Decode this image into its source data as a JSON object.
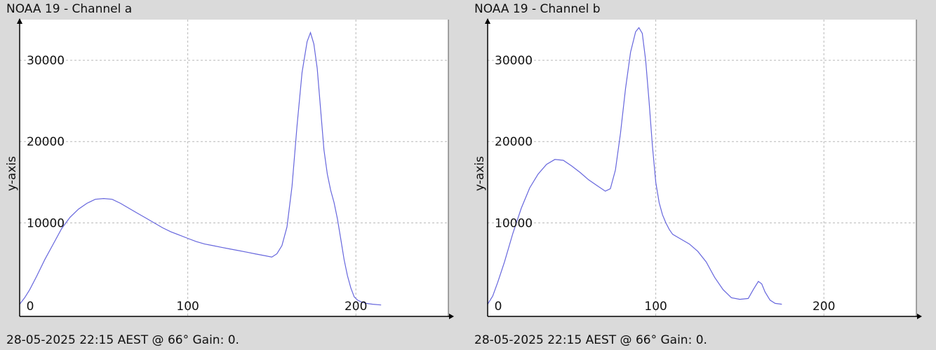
{
  "panels": [
    {
      "title": "NOAA 19 - Channel a",
      "footer": "28-05-2025 22:15 AEST @ 66° Gain: 0.",
      "ylabel": "y-axis"
    },
    {
      "title": "NOAA 19 - Channel b",
      "footer": "28-05-2025 22:15 AEST @ 66° Gain: 0.",
      "ylabel": "y-axis"
    }
  ],
  "chart_data": [
    {
      "type": "line",
      "title": "NOAA 19 - Channel a",
      "xlabel": "",
      "ylabel": "y-axis",
      "xlim": [
        0,
        255
      ],
      "ylim": [
        -1500,
        35000
      ],
      "x_ticks": [
        0,
        100,
        200
      ],
      "y_ticks": [
        10000,
        20000,
        30000
      ],
      "grid": true,
      "color": "#6666dd",
      "x": [
        0,
        3,
        6,
        10,
        15,
        20,
        25,
        30,
        35,
        40,
        45,
        50,
        55,
        60,
        65,
        70,
        75,
        80,
        85,
        90,
        95,
        100,
        105,
        110,
        115,
        120,
        125,
        130,
        135,
        140,
        145,
        150,
        153,
        156,
        159,
        162,
        165,
        168,
        171,
        173,
        175,
        177,
        179,
        181,
        183,
        185,
        187,
        189,
        191,
        193,
        195,
        197,
        199,
        201,
        203,
        206,
        210,
        215
      ],
      "y": [
        0,
        800,
        1800,
        3400,
        5500,
        7400,
        9300,
        10700,
        11700,
        12400,
        12900,
        13000,
        12900,
        12400,
        11800,
        11200,
        10600,
        10000,
        9400,
        8900,
        8500,
        8100,
        7700,
        7400,
        7200,
        7000,
        6800,
        6600,
        6400,
        6200,
        6000,
        5800,
        6200,
        7200,
        9500,
        14500,
        22000,
        28500,
        32300,
        33400,
        32000,
        29000,
        24000,
        19000,
        16000,
        14000,
        12500,
        10500,
        8000,
        5500,
        3500,
        2000,
        900,
        500,
        300,
        100,
        0,
        -100
      ]
    },
    {
      "type": "line",
      "title": "NOAA 19 - Channel b",
      "xlabel": "",
      "ylabel": "y-axis",
      "xlim": [
        0,
        255
      ],
      "ylim": [
        -1500,
        35000
      ],
      "x_ticks": [
        0,
        100,
        200
      ],
      "y_ticks": [
        10000,
        20000,
        30000
      ],
      "grid": true,
      "color": "#6666dd",
      "x": [
        0,
        3,
        6,
        10,
        15,
        20,
        25,
        30,
        35,
        40,
        45,
        50,
        55,
        60,
        65,
        70,
        73,
        76,
        79,
        82,
        85,
        88,
        90,
        92,
        94,
        96,
        98,
        100,
        102,
        104,
        106,
        108,
        110,
        115,
        120,
        125,
        130,
        135,
        140,
        145,
        150,
        155,
        158,
        161,
        163,
        165,
        168,
        171,
        175
      ],
      "y": [
        0,
        1000,
        2700,
        5200,
        8700,
        11800,
        14300,
        16000,
        17200,
        17800,
        17700,
        17000,
        16200,
        15300,
        14600,
        13900,
        14200,
        16500,
        21000,
        26500,
        31000,
        33500,
        34000,
        33300,
        30000,
        25000,
        19500,
        15000,
        12500,
        11000,
        10000,
        9200,
        8600,
        8000,
        7400,
        6500,
        5200,
        3300,
        1800,
        800,
        600,
        700,
        1800,
        2800,
        2500,
        1500,
        500,
        100,
        0
      ]
    }
  ]
}
